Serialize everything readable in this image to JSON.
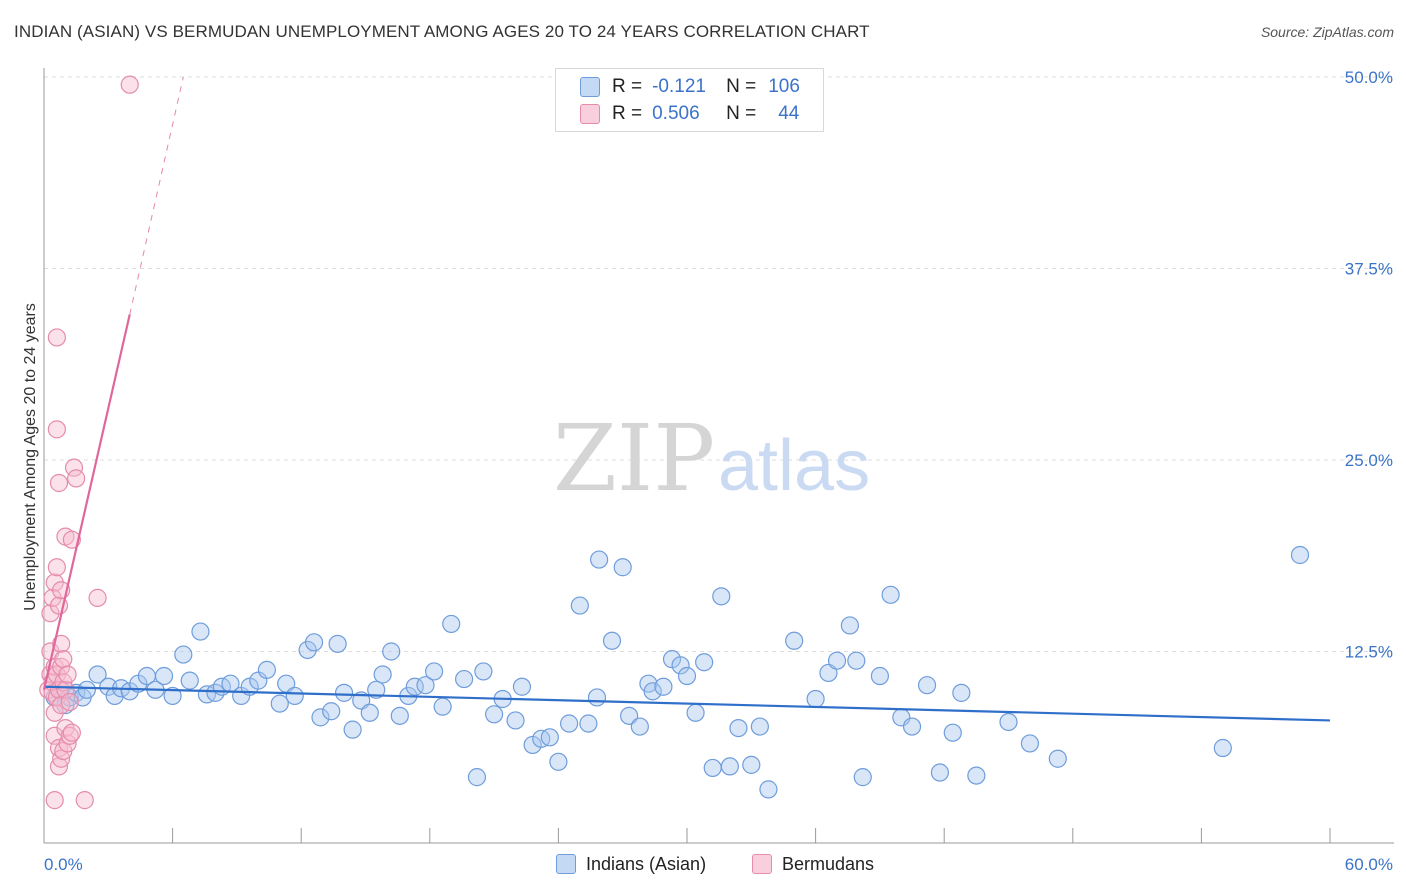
{
  "title": "INDIAN (ASIAN) VS BERMUDAN UNEMPLOYMENT AMONG AGES 20 TO 24 YEARS CORRELATION CHART",
  "source": "Source: ZipAtlas.com",
  "watermark": {
    "zip": "ZIP",
    "atlas": "atlas"
  },
  "legend": {
    "r_label": "R =",
    "n_label": "N =",
    "rows": [
      {
        "r": "-0.121",
        "n": "106",
        "color": "#a9c8ef",
        "border": "#6a9bd8"
      },
      {
        "r": "0.506",
        "n": "44",
        "color": "#f6bcd0",
        "border": "#e88aa8"
      }
    ]
  },
  "bottom_legend": {
    "indians": "Indians (Asian)",
    "bermudans": "Bermudans"
  },
  "colors": {
    "indian_fill": "rgba(169,200,239,0.45)",
    "indian_stroke": "#6f9ddb",
    "indian_line": "#2f6fc9",
    "bermudan_fill": "rgba(246,188,208,0.45)",
    "bermudan_stroke": "#e58cab",
    "bermudan_line": "#e0679a",
    "axis_text": "#3b73c8",
    "grid": "#dddddd"
  },
  "chart_data": {
    "type": "scatter",
    "title": "INDIAN (ASIAN) VS BERMUDAN UNEMPLOYMENT AMONG AGES 20 TO 24 YEARS CORRELATION CHART",
    "xlabel": "",
    "ylabel": "Unemployment Among Ages 20 to 24 years",
    "xlim": [
      0,
      60
    ],
    "ylim": [
      0,
      50
    ],
    "x_tick_labels": [
      "0.0%",
      "60.0%"
    ],
    "y_tick_values": [
      12.5,
      25.0,
      37.5,
      50.0
    ],
    "y_tick_labels": [
      "12.5%",
      "25.0%",
      "37.5%",
      "50.0%"
    ],
    "series": [
      {
        "name": "Indians (Asian)",
        "r": -0.121,
        "n": 106,
        "trend": {
          "x": [
            0,
            60
          ],
          "y": [
            10.2,
            8.0
          ]
        },
        "points": [
          [
            0.5,
            9.5
          ],
          [
            0.8,
            10.0
          ],
          [
            1.0,
            9.0
          ],
          [
            1.2,
            9.5
          ],
          [
            1.5,
            9.8
          ],
          [
            1.8,
            9.5
          ],
          [
            2.0,
            10.0
          ],
          [
            2.5,
            11.0
          ],
          [
            3.0,
            10.2
          ],
          [
            3.3,
            9.6
          ],
          [
            3.6,
            10.1
          ],
          [
            4.0,
            9.9
          ],
          [
            4.4,
            10.4
          ],
          [
            4.8,
            10.9
          ],
          [
            5.2,
            10.0
          ],
          [
            5.6,
            10.9
          ],
          [
            6.0,
            9.6
          ],
          [
            6.5,
            12.3
          ],
          [
            6.8,
            10.6
          ],
          [
            7.3,
            13.8
          ],
          [
            7.6,
            9.7
          ],
          [
            8.0,
            9.8
          ],
          [
            8.3,
            10.2
          ],
          [
            8.7,
            10.4
          ],
          [
            9.2,
            9.6
          ],
          [
            9.6,
            10.2
          ],
          [
            10.0,
            10.6
          ],
          [
            10.4,
            11.3
          ],
          [
            11.0,
            9.1
          ],
          [
            11.3,
            10.4
          ],
          [
            11.7,
            9.6
          ],
          [
            12.3,
            12.6
          ],
          [
            12.6,
            13.1
          ],
          [
            12.9,
            8.2
          ],
          [
            13.4,
            8.6
          ],
          [
            13.7,
            13.0
          ],
          [
            14.0,
            9.8
          ],
          [
            14.4,
            7.4
          ],
          [
            14.8,
            9.3
          ],
          [
            15.2,
            8.5
          ],
          [
            15.5,
            10.0
          ],
          [
            15.8,
            11.0
          ],
          [
            16.2,
            12.5
          ],
          [
            16.6,
            8.3
          ],
          [
            17.0,
            9.6
          ],
          [
            17.3,
            10.2
          ],
          [
            17.8,
            10.3
          ],
          [
            18.2,
            11.2
          ],
          [
            18.6,
            8.9
          ],
          [
            19.0,
            14.3
          ],
          [
            19.6,
            10.7
          ],
          [
            20.2,
            4.3
          ],
          [
            20.5,
            11.2
          ],
          [
            21.0,
            8.4
          ],
          [
            21.4,
            9.4
          ],
          [
            22.0,
            8.0
          ],
          [
            22.3,
            10.2
          ],
          [
            22.8,
            6.4
          ],
          [
            23.2,
            6.8
          ],
          [
            23.6,
            6.9
          ],
          [
            24.0,
            5.3
          ],
          [
            24.5,
            7.8
          ],
          [
            25.0,
            15.5
          ],
          [
            25.4,
            7.8
          ],
          [
            25.8,
            9.5
          ],
          [
            25.9,
            18.5
          ],
          [
            26.5,
            13.2
          ],
          [
            27.0,
            18.0
          ],
          [
            27.3,
            8.3
          ],
          [
            27.8,
            7.6
          ],
          [
            28.2,
            10.4
          ],
          [
            28.4,
            9.9
          ],
          [
            28.9,
            10.2
          ],
          [
            29.3,
            12.0
          ],
          [
            29.7,
            11.6
          ],
          [
            30.0,
            10.9
          ],
          [
            30.4,
            8.5
          ],
          [
            30.8,
            11.8
          ],
          [
            31.2,
            4.9
          ],
          [
            31.6,
            16.1
          ],
          [
            32.0,
            5.0
          ],
          [
            32.4,
            7.5
          ],
          [
            33.0,
            5.1
          ],
          [
            33.4,
            7.6
          ],
          [
            33.8,
            3.5
          ],
          [
            35.0,
            13.2
          ],
          [
            36.0,
            9.4
          ],
          [
            36.6,
            11.1
          ],
          [
            37.0,
            11.9
          ],
          [
            37.6,
            14.2
          ],
          [
            37.9,
            11.9
          ],
          [
            38.2,
            4.3
          ],
          [
            39.0,
            10.9
          ],
          [
            39.5,
            16.2
          ],
          [
            40.0,
            8.2
          ],
          [
            40.5,
            7.6
          ],
          [
            41.2,
            10.3
          ],
          [
            41.8,
            4.6
          ],
          [
            42.4,
            7.2
          ],
          [
            42.8,
            9.8
          ],
          [
            43.5,
            4.4
          ],
          [
            45.0,
            7.9
          ],
          [
            46.0,
            6.5
          ],
          [
            47.3,
            5.5
          ],
          [
            55.0,
            6.2
          ],
          [
            58.6,
            18.8
          ]
        ]
      },
      {
        "name": "Bermudans",
        "r": 0.506,
        "n": 44,
        "trend": {
          "x": [
            0,
            4.0
          ],
          "y": [
            10.0,
            34.5
          ]
        },
        "trend_extension": {
          "x": [
            4.0,
            6.5
          ],
          "y": [
            34.5,
            50.0
          ]
        },
        "points": [
          [
            0.2,
            10.0
          ],
          [
            0.3,
            11.0
          ],
          [
            0.3,
            15.0
          ],
          [
            0.3,
            12.5
          ],
          [
            0.4,
            9.8
          ],
          [
            0.4,
            16.0
          ],
          [
            0.4,
            10.5
          ],
          [
            0.5,
            17.0
          ],
          [
            0.5,
            11.5
          ],
          [
            0.5,
            7.0
          ],
          [
            0.5,
            8.5
          ],
          [
            0.6,
            33.0
          ],
          [
            0.6,
            27.0
          ],
          [
            0.6,
            18.0
          ],
          [
            0.6,
            11.0
          ],
          [
            0.6,
            9.5
          ],
          [
            0.7,
            23.5
          ],
          [
            0.7,
            15.5
          ],
          [
            0.7,
            10.0
          ],
          [
            0.7,
            6.2
          ],
          [
            0.7,
            5.0
          ],
          [
            0.8,
            16.5
          ],
          [
            0.8,
            13.0
          ],
          [
            0.8,
            11.5
          ],
          [
            0.8,
            9.0
          ],
          [
            0.8,
            5.5
          ],
          [
            0.9,
            12.0
          ],
          [
            0.9,
            10.5
          ],
          [
            0.9,
            6.0
          ],
          [
            1.0,
            20.0
          ],
          [
            1.0,
            10.0
          ],
          [
            1.0,
            7.5
          ],
          [
            1.1,
            11.0
          ],
          [
            1.1,
            6.5
          ],
          [
            1.2,
            9.2
          ],
          [
            1.2,
            7.0
          ],
          [
            1.3,
            19.8
          ],
          [
            1.3,
            7.2
          ],
          [
            1.4,
            24.5
          ],
          [
            1.5,
            23.8
          ],
          [
            1.9,
            2.8
          ],
          [
            2.5,
            16.0
          ],
          [
            0.5,
            2.8
          ],
          [
            4.0,
            49.5
          ]
        ]
      }
    ]
  }
}
